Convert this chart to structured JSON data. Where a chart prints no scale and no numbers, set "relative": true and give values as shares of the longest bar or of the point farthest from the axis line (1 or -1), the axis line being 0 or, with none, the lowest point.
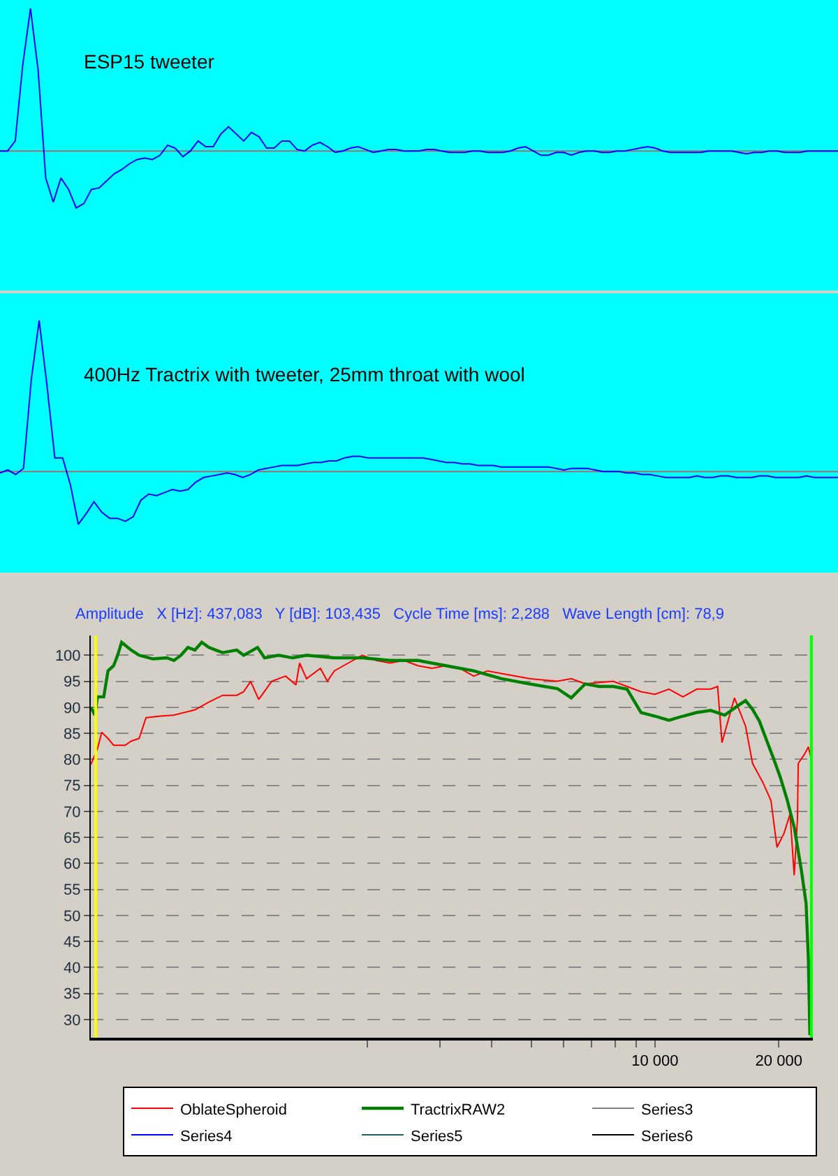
{
  "chart_data": [
    {
      "type": "line",
      "relative": true,
      "title": "ESP15 tweeter",
      "ref_lines": [
        {
          "axis": "y",
          "value": 0,
          "color": "#a07070"
        }
      ],
      "categories": [
        null,
        null,
        null,
        null,
        null,
        null,
        null,
        null,
        null,
        null,
        null,
        null,
        null,
        null,
        null,
        null,
        null,
        null,
        null,
        null,
        null,
        null,
        null,
        null,
        null,
        null,
        null,
        null,
        null,
        null,
        null,
        null,
        null,
        null,
        null,
        null,
        null,
        null,
        null,
        null,
        null,
        null,
        null,
        null,
        null,
        null,
        null,
        null,
        null,
        null,
        null,
        null,
        null,
        null,
        null,
        null,
        null,
        null,
        null,
        null,
        null,
        null,
        null,
        null,
        null,
        null,
        null,
        null,
        null,
        null,
        null,
        null,
        null,
        null,
        null,
        null,
        null,
        null,
        null,
        null,
        null,
        null,
        null,
        null,
        null,
        null,
        null,
        null,
        null,
        null,
        null,
        null,
        null,
        null,
        null,
        null,
        null,
        null,
        null,
        null,
        null,
        null,
        null,
        null,
        null,
        null,
        null,
        null,
        null,
        null,
        null
      ],
      "series": [
        {
          "color": "#0000ff",
          "values": [
            0,
            0,
            0.07,
            0.61,
            1,
            0.57,
            -0.19,
            -0.36,
            -0.19,
            -0.27,
            -0.4,
            -0.37,
            -0.27,
            -0.26,
            -0.21,
            -0.16,
            -0.13,
            -0.09,
            -0.06,
            -0.05,
            -0.06,
            -0.03,
            0.04,
            0.02,
            -0.04,
            0,
            0.07,
            0.03,
            0.03,
            0.12,
            0.17,
            0.12,
            0.07,
            0.13,
            0.1,
            0.02,
            0.02,
            0.07,
            0.07,
            0.01,
            0,
            0.04,
            0.06,
            0.03,
            -0.01,
            0,
            0.02,
            0.03,
            0.01,
            -0.01,
            0,
            0.01,
            0.01,
            0,
            0,
            0,
            0.01,
            0.01,
            0,
            -0.01,
            -0.01,
            -0.01,
            0,
            0,
            -0.01,
            -0.01,
            -0.01,
            0,
            0.02,
            0.03,
            0,
            -0.03,
            -0.03,
            -0.01,
            -0.01,
            -0.03,
            -0.01,
            0,
            0,
            -0.01,
            -0.01,
            0,
            0,
            0.01,
            0.02,
            0.03,
            0.02,
            0,
            -0.01,
            -0.01,
            -0.01,
            -0.01,
            -0.01,
            0,
            0,
            0,
            0,
            -0.01,
            -0.02,
            -0.01,
            -0.01,
            0,
            0,
            -0.01,
            -0.01,
            -0.01,
            0,
            0,
            0,
            0,
            0
          ]
        }
      ]
    },
    {
      "type": "line",
      "relative": true,
      "title": "400Hz Tractrix with tweeter, 25mm throat with wool",
      "ref_lines": [
        {
          "axis": "y",
          "value": 0,
          "color": "#a07070"
        }
      ],
      "categories": [
        null,
        null,
        null,
        null,
        null,
        null,
        null,
        null,
        null,
        null,
        null,
        null,
        null,
        null,
        null,
        null,
        null,
        null,
        null,
        null,
        null,
        null,
        null,
        null,
        null,
        null,
        null,
        null,
        null,
        null,
        null,
        null,
        null,
        null,
        null,
        null,
        null,
        null,
        null,
        null,
        null,
        null,
        null,
        null,
        null,
        null,
        null,
        null,
        null,
        null,
        null,
        null,
        null,
        null,
        null,
        null,
        null,
        null,
        null,
        null,
        null,
        null,
        null,
        null,
        null,
        null,
        null,
        null,
        null,
        null,
        null,
        null,
        null,
        null,
        null,
        null,
        null,
        null,
        null,
        null,
        null,
        null,
        null,
        null,
        null,
        null,
        null,
        null,
        null,
        null,
        null,
        null,
        null,
        null,
        null,
        null,
        null,
        null,
        null,
        null,
        null,
        null,
        null,
        null,
        null,
        null,
        null,
        null
      ],
      "series": [
        {
          "color": "#0000ff",
          "values": [
            -0.01,
            0.01,
            -0.02,
            0.02,
            0.61,
            1,
            0.57,
            0.09,
            0.09,
            -0.09,
            -0.35,
            -0.28,
            -0.2,
            -0.27,
            -0.31,
            -0.31,
            -0.33,
            -0.3,
            -0.19,
            -0.15,
            -0.16,
            -0.14,
            -0.12,
            -0.13,
            -0.12,
            -0.07,
            -0.04,
            -0.03,
            -0.02,
            -0.01,
            -0.02,
            -0.04,
            -0.02,
            0.01,
            0.02,
            0.03,
            0.04,
            0.04,
            0.04,
            0.05,
            0.06,
            0.06,
            0.07,
            0.07,
            0.09,
            0.1,
            0.1,
            0.09,
            0.09,
            0.09,
            0.09,
            0.09,
            0.09,
            0.09,
            0.09,
            0.08,
            0.07,
            0.06,
            0.06,
            0.05,
            0.05,
            0.04,
            0.04,
            0.04,
            0.03,
            0.03,
            0.03,
            0.03,
            0.03,
            0.03,
            0.03,
            0.02,
            0.01,
            0.02,
            0.02,
            0.02,
            0.01,
            0,
            0,
            0,
            -0.01,
            -0.01,
            -0.02,
            -0.02,
            -0.03,
            -0.04,
            -0.04,
            -0.04,
            -0.04,
            -0.03,
            -0.04,
            -0.04,
            -0.03,
            -0.03,
            -0.04,
            -0.04,
            -0.04,
            -0.03,
            -0.03,
            -0.04,
            -0.04,
            -0.04,
            -0.04,
            -0.03,
            -0.04,
            -0.04,
            -0.04,
            -0.04
          ]
        }
      ]
    },
    {
      "type": "line",
      "title": "Amplitude   X [Hz]: 437,083   Y [dB]: 103,435   Cycle Time [ms]: 2,288   Wave Length [cm]: 78,9",
      "log": "x",
      "grid": true,
      "legend": "bottom",
      "xlim": [
        425,
        24200
      ],
      "xticks": [
        {
          "value": 2000,
          "label": null
        },
        {
          "value": 3000,
          "label": null
        },
        {
          "value": 4000,
          "label": null
        },
        {
          "value": 5000,
          "label": null
        },
        {
          "value": 6000,
          "label": null
        },
        {
          "value": 7000,
          "label": null
        },
        {
          "value": 8000,
          "label": null
        },
        {
          "value": 9000,
          "label": null
        },
        {
          "value": 10000,
          "label": "10 000"
        },
        {
          "value": 20000,
          "label": "20 000"
        }
      ],
      "ylim": [
        26.5,
        103.8
      ],
      "yticks": [
        30,
        35,
        40,
        45,
        50,
        55,
        60,
        65,
        70,
        75,
        80,
        85,
        90,
        95,
        100
      ],
      "ref_lines": [
        {
          "axis": "x",
          "value": 437,
          "color": "#ffff00"
        },
        {
          "axis": "x",
          "value": 24000,
          "color": "#00ff00"
        }
      ],
      "series": [
        {
          "name": "OblateSpheroid",
          "color": "#ff0000",
          "x": [
            425,
            441,
            452,
            468,
            483,
            515,
            533,
            557,
            579,
            626,
            677,
            761,
            823,
            889,
            962,
            1000,
            1040,
            1088,
            1170,
            1265,
            1340,
            1368,
            1422,
            1537,
            1598,
            1661,
            1796,
            1942,
            2100,
            2270,
            2454,
            2653,
            2869,
            3102,
            3353,
            3625,
            3919,
            4237,
            4953,
            5789,
            6259,
            6767,
            7910,
            8552,
            9246,
            10000,
            10811,
            11689,
            12637,
            13663,
            14200,
            14550,
            15600,
            16600,
            17270,
            18280,
            19140,
            19800,
            20600,
            21300,
            21800,
            22200,
            22300,
            23100,
            23600,
            24000
          ],
          "values": [
            79,
            82,
            85.2,
            84,
            82.7,
            82.7,
            83.5,
            84,
            88,
            88.3,
            88.5,
            89.5,
            91,
            92.3,
            92.3,
            93,
            95,
            91.5,
            95,
            96,
            94.3,
            98.5,
            95.5,
            97.5,
            95,
            97,
            98.5,
            100,
            99,
            98.5,
            99,
            98,
            97.5,
            98,
            97.5,
            96,
            97,
            96.5,
            95.5,
            95,
            95.5,
            94.5,
            95,
            94,
            93,
            92.5,
            93.5,
            92,
            93.5,
            93.5,
            94,
            83.2,
            91.8,
            86.4,
            79.2,
            75.6,
            72.1,
            63.1,
            65.8,
            69.5,
            57.7,
            68.5,
            79.2,
            81,
            82.4,
            80
          ]
        },
        {
          "name": "TractrixRAW2",
          "color": "#008000",
          "x": [
            425,
            435,
            441,
            457,
            468,
            483,
            494,
            505,
            533,
            557,
            602,
            651,
            677,
            704,
            732,
            761,
            791,
            823,
            855,
            889,
            962,
            1000,
            1081,
            1124,
            1216,
            1315,
            1422,
            1661,
            1942,
            2270,
            2653,
            3102,
            3625,
            4237,
            4953,
            5789,
            6259,
            6767,
            7316,
            7910,
            8552,
            9246,
            10000,
            10811,
            11689,
            12637,
            13663,
            14772,
            15971,
            16600,
            17270,
            17950,
            18668,
            19410,
            20180,
            20980,
            21820,
            22690,
            23300,
            23600,
            23800
          ],
          "values": [
            90,
            88.5,
            92,
            92,
            97,
            98,
            100,
            102.5,
            101,
            100,
            99.3,
            99.5,
            99,
            100,
            101.5,
            101,
            102.5,
            101.5,
            101,
            100.5,
            101,
            100,
            101.5,
            99.5,
            100,
            99.5,
            100,
            99.5,
            99.5,
            99,
            99,
            98,
            97,
            95.5,
            94.5,
            93.6,
            91.8,
            94.5,
            94,
            94,
            93.5,
            89,
            88.3,
            87.5,
            88.3,
            89,
            89.4,
            88.5,
            90.4,
            91.3,
            89.6,
            87.3,
            83.7,
            80.2,
            76.5,
            72.1,
            66.8,
            58.7,
            52.3,
            41.6,
            27
          ]
        },
        {
          "name": "Series3",
          "color": "#808080"
        },
        {
          "name": "Series4",
          "color": "#0000ff"
        },
        {
          "name": "Series5",
          "color": "#1f5f6f"
        },
        {
          "name": "Series6",
          "color": "#000000"
        }
      ]
    }
  ]
}
